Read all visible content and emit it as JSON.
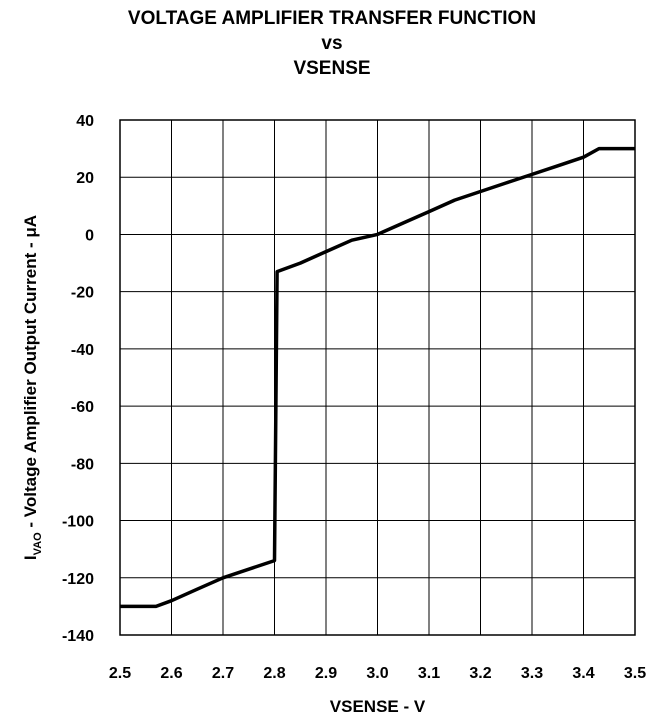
{
  "chart_data": {
    "type": "line",
    "title_lines": [
      "VOLTAGE AMPLIFIER TRANSFER FUNCTION",
      "vs",
      "VSENSE"
    ],
    "xlabel": "VSENSE - V",
    "ylabel": {
      "prefix": "I",
      "subscript": "VAO",
      "rest": " - Voltage Amplifier Output Current - ",
      "unit": "μA"
    },
    "xlim": [
      2.5,
      3.5
    ],
    "ylim": [
      -140,
      40
    ],
    "x_ticks": [
      "2.5",
      "2.6",
      "2.7",
      "2.8",
      "2.9",
      "3.0",
      "3.1",
      "3.2",
      "3.3",
      "3.4",
      "3.5"
    ],
    "y_ticks": [
      "40",
      "20",
      "0",
      "-20",
      "-40",
      "-60",
      "-80",
      "-100",
      "-120",
      "-140"
    ],
    "grid": true,
    "series": [
      {
        "color": "#000000",
        "x": [
          2.5,
          2.57,
          2.6,
          2.65,
          2.7,
          2.75,
          2.8,
          2.805,
          2.85,
          2.9,
          2.95,
          3.0,
          3.05,
          3.1,
          3.15,
          3.2,
          3.25,
          3.3,
          3.35,
          3.4,
          3.43,
          3.5
        ],
        "y": [
          -130,
          -130,
          -128,
          -124,
          -120,
          -117,
          -114,
          -13,
          -10,
          -6,
          -2,
          0,
          4,
          8,
          12,
          15,
          18,
          21,
          24,
          27,
          30,
          30
        ]
      }
    ]
  }
}
